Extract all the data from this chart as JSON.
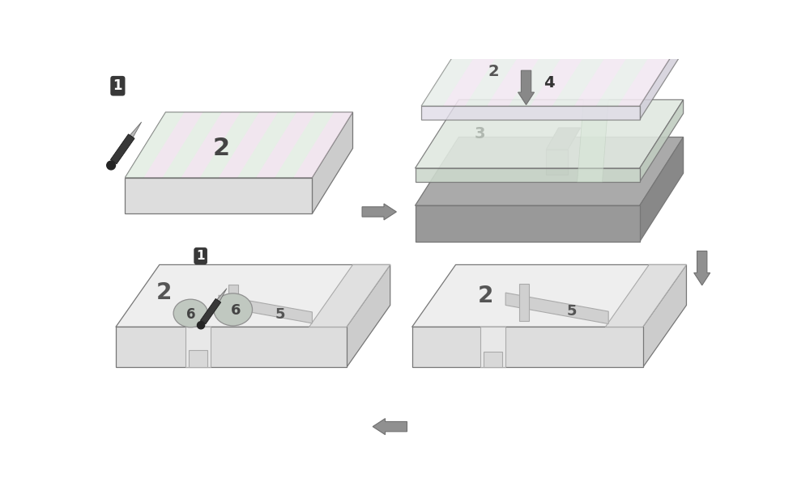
{
  "bg": "#ffffff",
  "slab_top_light": "#eeeeee",
  "slab_right_light": "#cccccc",
  "slab_front_light": "#dddddd",
  "slab_top_pink": "#f0e8f0",
  "slab_top_green": "#e0f0e0",
  "slab_top_dark": "#aaaaaa",
  "slab_right_dark": "#888888",
  "slab_front_dark": "#999999",
  "slab_top_mid": "#d8d8d8",
  "slab_right_mid": "#b8b8b8",
  "slab_front_mid": "#c8c8c8",
  "transparent_top": "#e8f0f0",
  "transparent_right": "#c8d8d8",
  "transparent_front": "#d8e8e8",
  "waveguide_color": "#c0c0c0",
  "channel_color": "#c8c8c8",
  "drop_color": "#b8c8b8",
  "arrow_gray": "#909090",
  "label_dark": "#333333",
  "pen_body": "#3a3a3a",
  "pen_tip": "#b0b0b0",
  "pen_cap_color": "#222222"
}
